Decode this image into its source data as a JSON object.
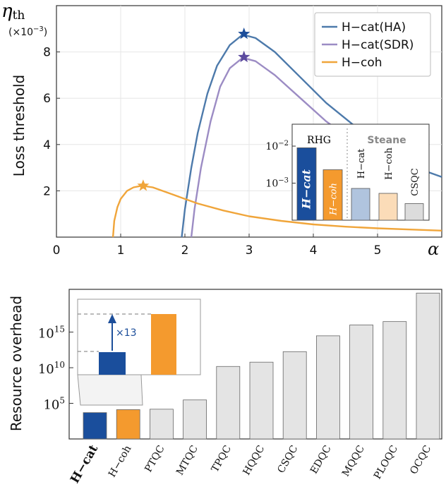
{
  "colors": {
    "ha": "#4d7aab",
    "sdr": "#9c8cc4",
    "coh": "#f0a53a",
    "ha_star": "#1c4e9a",
    "sdr_star": "#5b4a9e",
    "coh_star": "#f0a53a",
    "hcat_bar": "#1a4e9c",
    "hcoh_bar": "#f49a2e",
    "grey_bar": "#e4e4e4",
    "inset_hcat": "#b0c4de",
    "inset_hcoh": "#fbdcb8",
    "inset_csqc": "#dcdcdc",
    "rhg_text": "#888888"
  },
  "chart_data": [
    {
      "type": "line",
      "ylabel_symbol": "η",
      "ylabel_sub": "th",
      "yunit_prefix": "(×10",
      "yunit_exp": "−3",
      "yunit_suffix": ")",
      "ylabel": "Loss threshold",
      "xlabel": "α",
      "xlim": [
        0,
        6
      ],
      "ylim": [
        0,
        10
      ],
      "xticks": [
        "0",
        "1",
        "2",
        "3",
        "4",
        "5"
      ],
      "yticks": [
        "2",
        "4",
        "6",
        "8"
      ],
      "legend": [
        "H−cat(HA)",
        "H−cat(SDR)",
        "H−coh"
      ],
      "series": [
        {
          "name": "H−cat(HA)",
          "x": [
            1.95,
            2.0,
            2.1,
            2.2,
            2.35,
            2.5,
            2.7,
            2.9,
            3.1,
            3.4,
            3.8,
            4.2,
            4.6,
            5.0,
            5.4,
            5.8,
            6.0
          ],
          "y": [
            0.0,
            1.2,
            3.0,
            4.5,
            6.2,
            7.4,
            8.3,
            8.75,
            8.6,
            8.0,
            6.9,
            5.8,
            4.9,
            4.1,
            3.4,
            2.8,
            2.6
          ]
        },
        {
          "name": "H−cat(SDR)",
          "x": [
            2.1,
            2.15,
            2.25,
            2.4,
            2.55,
            2.7,
            2.9,
            3.1,
            3.4,
            3.8,
            4.2,
            4.6,
            5.0
          ],
          "y": [
            0.0,
            1.2,
            3.0,
            5.0,
            6.5,
            7.3,
            7.75,
            7.6,
            7.0,
            6.0,
            5.0,
            4.2,
            3.5
          ]
        },
        {
          "name": "H−coh",
          "x": [
            0.88,
            0.9,
            0.95,
            1.0,
            1.1,
            1.2,
            1.33,
            1.5,
            1.8,
            2.2,
            2.6,
            3.0,
            3.5,
            4.0,
            4.5,
            5.0,
            5.5,
            6.0
          ],
          "y": [
            0.0,
            0.7,
            1.3,
            1.65,
            2.0,
            2.15,
            2.22,
            2.15,
            1.85,
            1.45,
            1.15,
            0.9,
            0.7,
            0.55,
            0.45,
            0.38,
            0.33,
            0.28
          ]
        }
      ],
      "markers": [
        {
          "series": "H−cat(HA)",
          "x": 2.92,
          "y": 8.78
        },
        {
          "series": "H−cat(SDR)",
          "x": 2.92,
          "y": 7.78
        },
        {
          "series": "H−coh",
          "x": 1.35,
          "y": 2.22
        }
      ]
    },
    {
      "type": "bar",
      "scale": "log",
      "group_labels": [
        "RHG",
        "Steane"
      ],
      "categories": [
        "H−cat",
        "H−coh",
        "H−cat",
        "H−coh",
        "CSQC"
      ],
      "values": [
        0.009,
        0.0023,
        0.00072,
        0.00053,
        0.00028
      ],
      "ylim": [
        0.0001,
        0.03
      ],
      "yticks": [
        {
          "base": "10",
          "exp": "−2"
        },
        {
          "base": "10",
          "exp": "−3"
        }
      ]
    },
    {
      "type": "bar",
      "scale": "log",
      "ylabel": "Resource overhead",
      "categories": [
        "H−cat",
        "H−coh",
        "PTQC",
        "MTQC",
        "TPQC",
        "HQQC",
        "CSQC",
        "EDQC",
        "MQQC",
        "PLOQC",
        "OCQC"
      ],
      "values": [
        5000.0,
        13000.0,
        15000.0,
        300000.0,
        15000000000.0,
        60000000000.0,
        1800000000000.0,
        300000000000000.0,
        1e+16,
        3e+16,
        3e+20
      ],
      "ylim": [
        1,
        1e+21
      ],
      "yticks": [
        {
          "base": "10",
          "exp": "5"
        },
        {
          "base": "10",
          "exp": "10"
        },
        {
          "base": "10",
          "exp": "15"
        }
      ],
      "zoom_annotation": "×13"
    }
  ]
}
